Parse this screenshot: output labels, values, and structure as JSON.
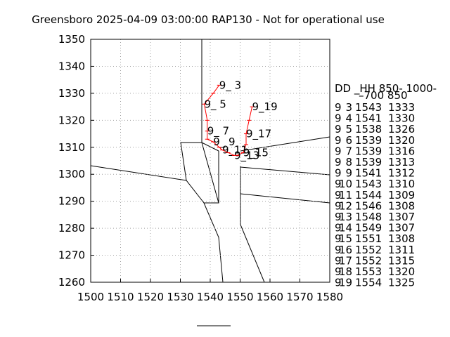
{
  "chart_data": {
    "type": "line",
    "title": "Greensboro 2025-04-09 03:00:00 RAP130 - Not for operational use",
    "table_header": [
      "DD _HH 850- 1000-",
      "–700  850"
    ],
    "day": [
      9,
      9,
      9,
      9,
      9,
      9,
      9,
      9,
      9,
      9,
      9,
      9,
      9,
      9,
      9,
      9,
      9
    ],
    "hour": [
      3,
      4,
      5,
      6,
      7,
      8,
      9,
      10,
      11,
      12,
      13,
      14,
      15,
      16,
      17,
      18,
      19
    ],
    "x": [
      1543,
      1541,
      1538,
      1539,
      1539,
      1539,
      1541,
      1543,
      1544,
      1546,
      1548,
      1549,
      1551,
      1552,
      1552,
      1553,
      1554
    ],
    "series": [
      {
        "color": "#ff0000",
        "values": [
          1333,
          1330,
          1326,
          1320,
          1316,
          1313,
          1312,
          1310,
          1309,
          1308,
          1307,
          1307,
          1308,
          1311,
          1315,
          1320,
          1325
        ],
        "labels": [
          "9_ 3",
          null,
          "9_ 5",
          null,
          "9_ 7",
          null,
          "9_ 9",
          null,
          "9_11",
          null,
          "9_13",
          null,
          "9_15",
          null,
          "9_17",
          null,
          "9_19"
        ]
      }
    ],
    "xlim": [
      1500,
      1580
    ],
    "xticks": [
      1500,
      1510,
      1520,
      1530,
      1540,
      1550,
      1560,
      1570,
      1580
    ],
    "ylim": [
      1260,
      1350
    ],
    "yticks": [
      1260,
      1270,
      1280,
      1290,
      1300,
      1310,
      1320,
      1330,
      1340,
      1350
    ],
    "grid": true
  }
}
